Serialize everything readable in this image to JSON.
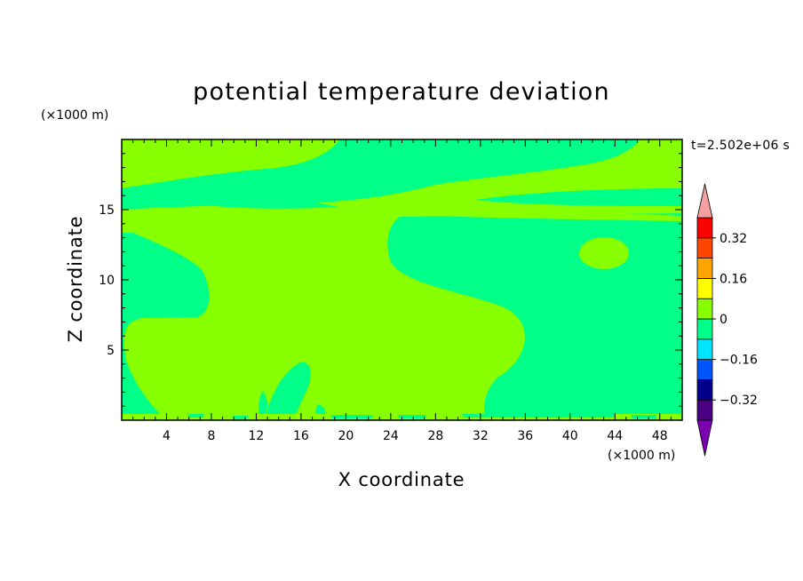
{
  "chart_data": {
    "type": "heatmap",
    "title": "potential temperature deviation",
    "xlabel": "X coordinate",
    "ylabel": "Z coordinate",
    "x_unit": "(×1000 m)",
    "y_unit": "(×1000 m)",
    "time_label": "t=2.502e+06 s",
    "xlim": [
      0,
      50
    ],
    "ylim": [
      0,
      20
    ],
    "x_ticks": [
      4,
      8,
      12,
      16,
      20,
      24,
      28,
      32,
      36,
      40,
      44,
      48
    ],
    "y_ticks": [
      5,
      10,
      15
    ],
    "colorbar": {
      "levels": [
        -0.4,
        -0.32,
        -0.24,
        -0.16,
        -0.08,
        0,
        0.08,
        0.16,
        0.24,
        0.32,
        0.4
      ],
      "colors": [
        "#4b0082",
        "#00008b",
        "#0055ff",
        "#00e5ff",
        "#00ff88",
        "#88ff00",
        "#ffff00",
        "#ffa500",
        "#ff4500",
        "#ff0000"
      ],
      "under_color": "#7a00b0",
      "over_color": "#f5a0a0",
      "tick_labels": [
        "0.32",
        "0.16",
        "0",
        "-0.16",
        "-0.32"
      ]
    },
    "field_regions": [
      {
        "value_range": [
          0,
          0.08
        ],
        "color": "#88ff00",
        "description": "background"
      },
      {
        "value_range": [
          -0.08,
          0
        ],
        "color": "#00ff88"
      }
    ]
  }
}
